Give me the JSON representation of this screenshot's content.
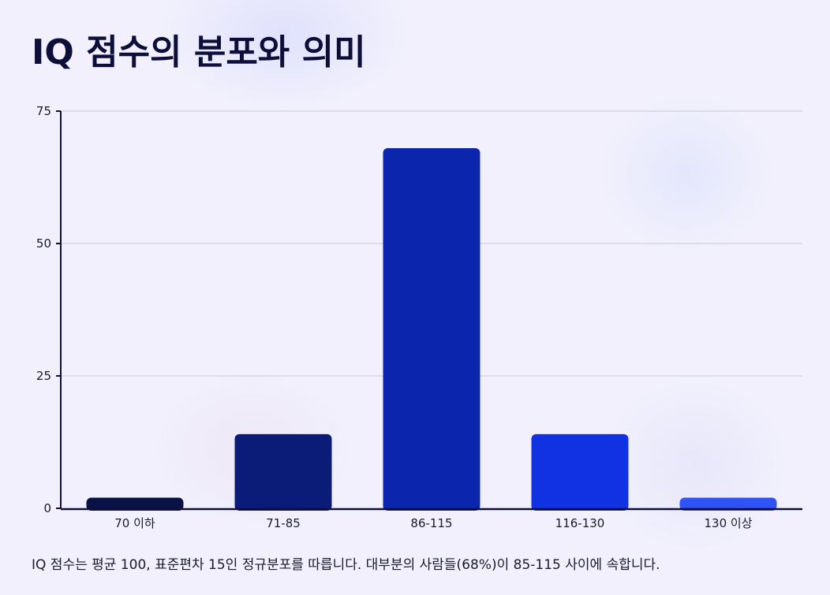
{
  "page": {
    "title": "IQ 점수의 분포와 의미",
    "caption": "IQ 점수는 평균 100, 표준편차 15인 정규분포를 따릅니다. 대부분의 사람들(68%)이 85-115 사이에 속합니다."
  },
  "chart_data": {
    "type": "bar",
    "title": "IQ 점수의 분포와 의미",
    "xlabel": "",
    "ylabel": "",
    "categories": [
      "70 이하",
      "71-85",
      "86-115",
      "116-130",
      "130 이상"
    ],
    "values": [
      2,
      14,
      68,
      14,
      2
    ],
    "colors": [
      "#0a1145",
      "#0a1b78",
      "#0b25ad",
      "#1132e3",
      "#3152f5"
    ],
    "ylim": [
      0,
      75
    ],
    "yticks": [
      0,
      25,
      50,
      75
    ],
    "grid": true,
    "legend": "none"
  }
}
